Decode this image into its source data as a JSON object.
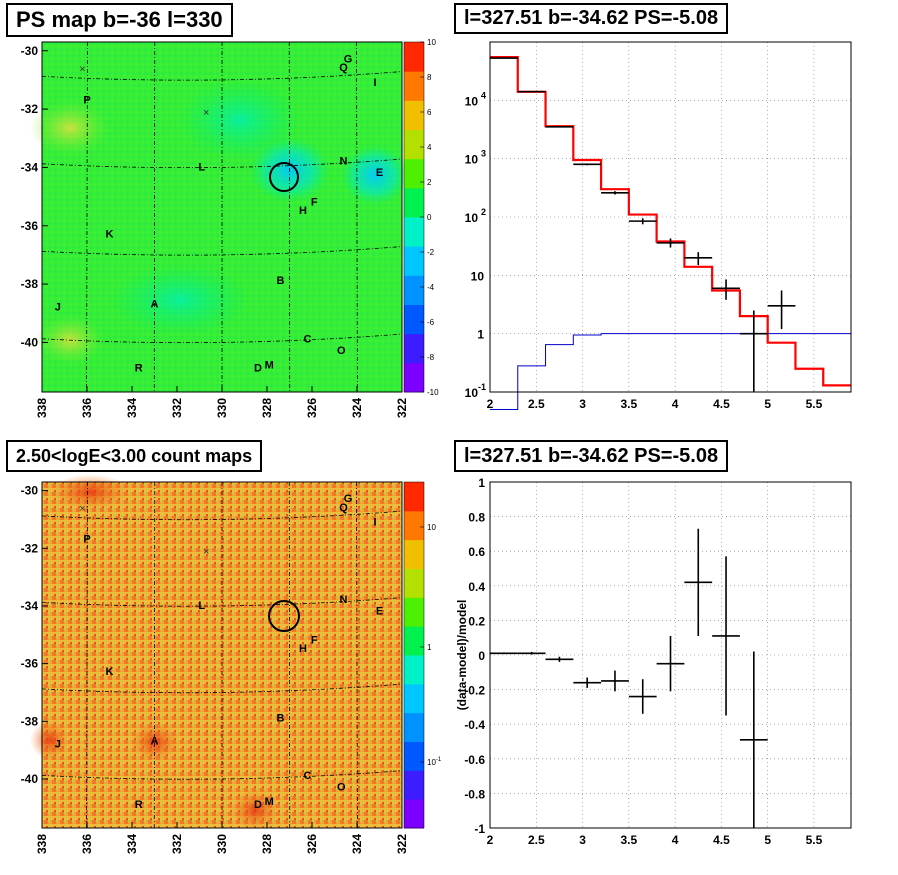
{
  "panels": {
    "ps_map_title": "PS map b=-36 l=330",
    "spectrum_title": "l=327.51 b=-34.62 PS=-5.08",
    "count_map_title": "2.50<logE<3.00 count maps",
    "residual_title": "l=327.51 b=-34.62 PS=-5.08"
  },
  "maps": {
    "y_ticks": [
      "-30",
      "-32",
      "-34",
      "-36",
      "-38",
      "-40"
    ],
    "x_ticks": [
      "338",
      "336",
      "334",
      "332",
      "330",
      "328",
      "326",
      "324",
      "322"
    ],
    "markers": [
      "×",
      "×"
    ],
    "sources": [
      {
        "name": "P",
        "l": 336.0,
        "b": -31.8
      },
      {
        "name": "Q",
        "l": 324.6,
        "b": -30.7
      },
      {
        "name": "G",
        "l": 324.4,
        "b": -30.4
      },
      {
        "name": "I",
        "l": 323.2,
        "b": -31.2
      },
      {
        "name": "L",
        "l": 330.9,
        "b": -34.1
      },
      {
        "name": "N",
        "l": 324.6,
        "b": -33.9
      },
      {
        "name": "E",
        "l": 323.0,
        "b": -34.3
      },
      {
        "name": "F",
        "l": 325.9,
        "b": -35.3
      },
      {
        "name": "H",
        "l": 326.4,
        "b": -35.6
      },
      {
        "name": "K",
        "l": 335.0,
        "b": -36.4
      },
      {
        "name": "B",
        "l": 327.4,
        "b": -38.0
      },
      {
        "name": "A",
        "l": 333.0,
        "b": -38.8
      },
      {
        "name": "J",
        "l": 337.3,
        "b": -38.9
      },
      {
        "name": "C",
        "l": 326.2,
        "b": -40.0
      },
      {
        "name": "O",
        "l": 324.7,
        "b": -40.4
      },
      {
        "name": "R",
        "l": 333.7,
        "b": -41.0
      },
      {
        "name": "D",
        "l": 328.4,
        "b": -41.0
      },
      {
        "name": "M",
        "l": 327.9,
        "b": -40.9
      }
    ],
    "circle_position": {
      "l": 327.51,
      "b": -34.62
    },
    "cross_markers": [
      {
        "l": 336.2,
        "b": -30.6
      },
      {
        "l": 330.7,
        "b": -32.1
      }
    ]
  },
  "colorbars": {
    "ps_ticks": [
      "10",
      "8",
      "6",
      "4",
      "2",
      "0",
      "-2",
      "-4",
      "-6",
      "-8",
      "-10"
    ],
    "count_ticks": [
      {
        "label": "10",
        "sup": ""
      },
      {
        "label": "1",
        "sup": ""
      },
      {
        "label": "10",
        "sup": "-1"
      }
    ],
    "ps_colors": [
      "#7b00ff",
      "#3c1dff",
      "#0058ff",
      "#0092ff",
      "#00c6ff",
      "#00f0c8",
      "#00f050",
      "#4cf000",
      "#b4e000",
      "#f0c000",
      "#ff7800",
      "#ff2800"
    ],
    "count_colors": [
      "#7b00ff",
      "#3c1dff",
      "#0058ff",
      "#0092ff",
      "#00c6ff",
      "#00f0c8",
      "#00f050",
      "#4cf000",
      "#b4e000",
      "#f0c000",
      "#ff7800",
      "#ff2800"
    ]
  },
  "chart_data": [
    {
      "type": "line",
      "panel": "spectrum",
      "title": "l=327.51 b=-34.62 PS=-5.08",
      "x_ticks": [
        "2",
        "2.5",
        "3",
        "3.5",
        "4",
        "4.5",
        "5",
        "5.5"
      ],
      "y_ticks": [
        {
          "base": "10",
          "sup": "-1"
        },
        {
          "base": "1",
          "sup": ""
        },
        {
          "base": "10",
          "sup": ""
        },
        {
          "base": "10",
          "sup": "2"
        },
        {
          "base": "10",
          "sup": "3"
        },
        {
          "base": "10",
          "sup": "4"
        }
      ],
      "xlim": [
        2.0,
        5.9
      ],
      "ylim_log10": [
        -1.0,
        5.0
      ],
      "yscale": "log",
      "grid": true,
      "bin_edges": [
        2.0,
        2.3,
        2.6,
        2.9,
        3.2,
        3.5,
        3.8,
        4.1,
        4.4,
        4.7,
        5.0,
        5.3,
        5.6,
        5.9
      ],
      "series": [
        {
          "color": "#ff0000",
          "style": "step",
          "values": [
            55000,
            14000,
            3600,
            950,
            300,
            110,
            38,
            14,
            5.5,
            2.0,
            0.7,
            0.25,
            0.13
          ]
        },
        {
          "color": "#0000cc",
          "style": "step",
          "values": [
            0.05,
            0.28,
            0.65,
            0.95,
            1.0,
            1.0,
            1.0,
            1.0,
            1.0,
            1.0,
            1.0,
            1.0,
            1.0
          ]
        },
        {
          "color": "#000000",
          "style": "errorbar",
          "points": [
            {
              "x": 2.15,
              "xerr": 0.15,
              "y": 53000,
              "ylo": 52000,
              "yhi": 54000
            },
            {
              "x": 2.45,
              "xerr": 0.15,
              "y": 14100,
              "ylo": 13800,
              "yhi": 14400
            },
            {
              "x": 2.75,
              "xerr": 0.15,
              "y": 3520,
              "ylo": 3450,
              "yhi": 3600
            },
            {
              "x": 3.05,
              "xerr": 0.15,
              "y": 800,
              "ylo": 770,
              "yhi": 830
            },
            {
              "x": 3.35,
              "xerr": 0.15,
              "y": 260,
              "ylo": 243,
              "yhi": 277
            },
            {
              "x": 3.65,
              "xerr": 0.15,
              "y": 85,
              "ylo": 75,
              "yhi": 95
            },
            {
              "x": 3.95,
              "xerr": 0.15,
              "y": 36,
              "ylo": 30,
              "yhi": 43
            },
            {
              "x": 4.25,
              "xerr": 0.15,
              "y": 20,
              "ylo": 15,
              "yhi": 25
            },
            {
              "x": 4.55,
              "xerr": 0.15,
              "y": 6,
              "ylo": 3.8,
              "yhi": 8.5
            },
            {
              "x": 4.85,
              "xerr": 0.15,
              "y": 1,
              "ylo": 0.1,
              "yhi": 2.5
            },
            {
              "x": 5.15,
              "xerr": 0.15,
              "y": 3,
              "ylo": 1.2,
              "yhi": 5.5
            }
          ]
        }
      ]
    },
    {
      "type": "scatter",
      "panel": "residual",
      "title": "l=327.51 b=-34.62 PS=-5.08",
      "ylabel": "(data-model)/model",
      "x_ticks": [
        "2",
        "2.5",
        "3",
        "3.5",
        "4",
        "4.5",
        "5",
        "5.5"
      ],
      "y_ticks": [
        "1",
        "0.8",
        "0.6",
        "0.4",
        "0.2",
        "0",
        "-0.2",
        "-0.4",
        "-0.6",
        "-0.8",
        "-1"
      ],
      "xlim": [
        2.0,
        5.9
      ],
      "ylim": [
        -1.0,
        1.0
      ],
      "grid": true,
      "points": [
        {
          "x": 2.15,
          "xerr": 0.15,
          "y": 0.01,
          "yerr": 0.005
        },
        {
          "x": 2.45,
          "xerr": 0.15,
          "y": 0.01,
          "yerr": 0.008
        },
        {
          "x": 2.75,
          "xerr": 0.15,
          "y": -0.025,
          "yerr": 0.015
        },
        {
          "x": 3.05,
          "xerr": 0.15,
          "y": -0.16,
          "yerr": 0.03
        },
        {
          "x": 3.35,
          "xerr": 0.15,
          "y": -0.15,
          "yerr": 0.06
        },
        {
          "x": 3.65,
          "xerr": 0.15,
          "y": -0.24,
          "yerr": 0.1
        },
        {
          "x": 3.95,
          "xerr": 0.15,
          "y": -0.05,
          "yerr": 0.16
        },
        {
          "x": 4.25,
          "xerr": 0.15,
          "y": 0.42,
          "yerr": 0.31
        },
        {
          "x": 4.55,
          "xerr": 0.15,
          "y": 0.11,
          "yerr": 0.46
        },
        {
          "x": 4.85,
          "xerr": 0.15,
          "y": -0.49,
          "yerr": 0.51
        }
      ]
    }
  ]
}
